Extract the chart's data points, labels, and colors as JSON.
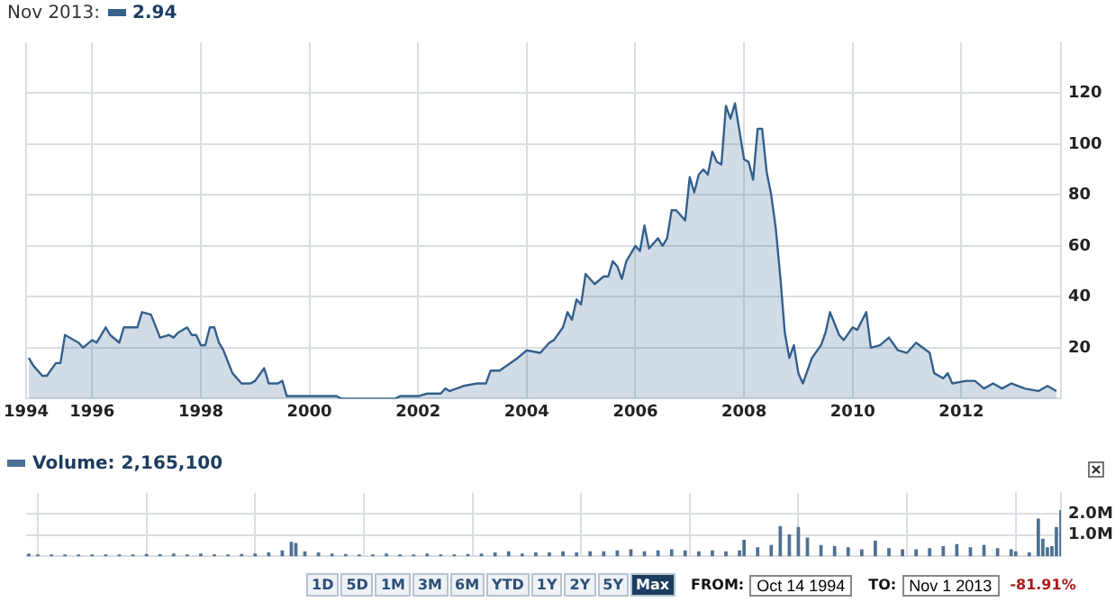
{
  "chart_data": [
    {
      "type": "area",
      "legend_title": "Nov 2013:",
      "legend": "top left",
      "grid": true,
      "xlim": [
        "1994-10-14",
        "2013-11-01"
      ],
      "ylim": [
        0,
        140
      ],
      "yticks": [
        20,
        40,
        60,
        80,
        100,
        120
      ],
      "xticks": [
        {
          "value": "1994-10-14",
          "label": "1994"
        },
        {
          "value": "1996-01-01",
          "label": "1996"
        },
        {
          "value": "1998-01-01",
          "label": "1998"
        },
        {
          "value": "2000-01-01",
          "label": "2000"
        },
        {
          "value": "2002-01-01",
          "label": "2002"
        },
        {
          "value": "2004-01-01",
          "label": "2004"
        },
        {
          "value": "2006-01-01",
          "label": "2006"
        },
        {
          "value": "2008-01-01",
          "label": "2008"
        },
        {
          "value": "2010-01-01",
          "label": "2010"
        },
        {
          "value": "2012-01-01",
          "label": "2012"
        }
      ],
      "series": [
        {
          "name": "2.94",
          "color": "#34608c",
          "x": [
            "1994-11",
            "1994-12",
            "1995-02",
            "1995-03",
            "1995-05",
            "1995-06",
            "1995-07",
            "1995-10",
            "1995-11",
            "1996-01",
            "1996-02",
            "1996-04",
            "1996-05",
            "1996-07",
            "1996-08",
            "1996-10",
            "1996-11",
            "1996-12",
            "1997-02",
            "1997-04",
            "1997-06",
            "1997-07",
            "1997-08",
            "1997-10",
            "1997-11",
            "1997-12",
            "1998-01",
            "1998-02",
            "1998-03",
            "1998-04",
            "1998-05",
            "1998-06",
            "1998-08",
            "1998-10",
            "1998-12",
            "1999-01",
            "1999-03",
            "1999-04",
            "1999-06",
            "1999-07",
            "1999-08",
            "1999-09",
            "1999-11",
            "2000-02",
            "2000-07",
            "2000-08",
            "2001-02",
            "2001-08",
            "2001-09",
            "2002-01",
            "2002-03",
            "2002-06",
            "2002-07",
            "2002-08",
            "2002-11",
            "2003-02",
            "2003-04",
            "2003-05",
            "2003-07",
            "2003-11",
            "2004-01",
            "2004-04",
            "2004-06",
            "2004-07",
            "2004-09",
            "2004-10",
            "2004-11",
            "2004-12",
            "2005-01",
            "2005-02",
            "2005-04",
            "2005-06",
            "2005-07",
            "2005-08",
            "2005-09",
            "2005-10",
            "2005-11",
            "2006-01",
            "2006-02",
            "2006-03",
            "2006-04",
            "2006-06",
            "2006-07",
            "2006-08",
            "2006-09",
            "2006-10",
            "2006-12",
            "2007-01",
            "2007-02",
            "2007-03",
            "2007-04",
            "2007-05",
            "2007-06",
            "2007-07",
            "2007-08",
            "2007-09",
            "2007-10",
            "2007-11",
            "2008-01",
            "2008-02",
            "2008-03",
            "2008-04",
            "2008-05",
            "2008-06",
            "2008-07",
            "2008-08",
            "2008-09",
            "2008-10",
            "2008-11",
            "2008-12",
            "2009-01",
            "2009-02",
            "2009-04",
            "2009-06",
            "2009-07",
            "2009-08",
            "2009-10",
            "2009-11",
            "2010-01",
            "2010-02",
            "2010-04",
            "2010-05",
            "2010-07",
            "2010-09",
            "2010-11",
            "2011-01",
            "2011-03",
            "2011-06",
            "2011-07",
            "2011-09",
            "2011-10",
            "2011-11",
            "2012-02",
            "2012-04",
            "2012-06",
            "2012-08",
            "2012-10",
            "2012-12",
            "2013-03",
            "2013-06",
            "2013-08",
            "2013-10"
          ],
          "values": [
            16,
            13,
            9,
            9,
            14,
            14,
            25,
            22,
            20,
            23,
            22,
            28,
            25,
            22,
            28,
            28,
            28,
            34,
            33,
            24,
            25,
            24,
            26,
            28,
            25,
            25,
            21,
            21,
            28,
            28,
            22,
            19,
            10,
            6,
            6,
            7,
            12,
            6,
            6,
            7,
            1,
            1,
            1,
            1,
            1,
            0,
            0,
            0,
            1,
            1,
            2,
            2,
            4,
            3,
            5,
            6,
            6,
            11,
            11,
            16,
            19,
            18,
            22,
            23,
            28,
            34,
            31,
            39,
            37,
            49,
            45,
            48,
            48,
            54,
            52,
            47,
            54,
            60,
            58,
            68,
            59,
            63,
            60,
            63,
            74,
            74,
            70,
            87,
            81,
            88,
            90,
            88,
            97,
            93,
            92,
            115,
            110,
            116,
            94,
            93,
            86,
            106,
            106,
            89,
            80,
            67,
            48,
            26,
            16,
            21,
            10,
            6,
            16,
            21,
            26,
            34,
            25,
            23,
            28,
            27,
            34,
            20,
            21,
            24,
            19,
            18,
            22,
            18,
            10,
            8,
            10,
            6,
            7,
            7,
            4,
            6,
            4,
            6,
            4,
            3,
            5,
            3
          ]
        }
      ]
    },
    {
      "type": "bar",
      "legend": "top left",
      "grid": true,
      "tick_labels": "y",
      "xlim": [
        "1994-10-14",
        "2013-11-01"
      ],
      "ylim": [
        0,
        3000000
      ],
      "yticks": [
        {
          "value": 1000000,
          "label": "1.0M"
        },
        {
          "value": 2000000,
          "label": "2.0M"
        }
      ],
      "xticks": [
        {
          "value": "1996-01-01",
          "label": null
        },
        {
          "value": "1998-01-01",
          "label": null
        },
        {
          "value": "2000-01-01",
          "label": null
        },
        {
          "value": "2002-01-01",
          "label": null
        },
        {
          "value": "2004-01-01",
          "label": null
        },
        {
          "value": "2006-01-01",
          "label": null
        },
        {
          "value": "2008-01-01",
          "label": null
        },
        {
          "value": "2010-01-01",
          "label": null
        },
        {
          "value": "2012-01-01",
          "label": null
        }
      ],
      "series": [
        {
          "name": "Volume: 2,165,100",
          "color": "#4d7193",
          "x": [
            "1994-11",
            "1995-01",
            "1995-04",
            "1995-07",
            "1995-10",
            "1996-01",
            "1996-04",
            "1996-07",
            "1996-10",
            "1997-01",
            "1997-04",
            "1997-07",
            "1997-10",
            "1998-01",
            "1998-04",
            "1998-07",
            "1998-10",
            "1999-01",
            "1999-04",
            "1999-07",
            "1999-09",
            "1999-10",
            "1999-12",
            "2000-03",
            "2000-06",
            "2000-09",
            "2000-12",
            "2001-03",
            "2001-06",
            "2001-09",
            "2001-12",
            "2002-03",
            "2002-06",
            "2002-09",
            "2002-12",
            "2003-03",
            "2003-06",
            "2003-09",
            "2003-12",
            "2004-03",
            "2004-06",
            "2004-09",
            "2004-12",
            "2005-03",
            "2005-06",
            "2005-09",
            "2005-12",
            "2006-03",
            "2006-06",
            "2006-09",
            "2006-12",
            "2007-03",
            "2007-06",
            "2007-09",
            "2007-12",
            "2008-01",
            "2008-04",
            "2008-07",
            "2008-09",
            "2008-11",
            "2009-01",
            "2009-03",
            "2009-06",
            "2009-09",
            "2009-12",
            "2010-03",
            "2010-06",
            "2010-09",
            "2010-12",
            "2011-03",
            "2011-06",
            "2011-09",
            "2011-12",
            "2012-03",
            "2012-06",
            "2012-09",
            "2012-12",
            "2013-01",
            "2013-04",
            "2013-06",
            "2013-07",
            "2013-08",
            "2013-09",
            "2013-10",
            "2013-11"
          ],
          "values": [
            100000,
            50000,
            50000,
            50000,
            50000,
            50000,
            50000,
            50000,
            60000,
            80000,
            70000,
            100000,
            60000,
            100000,
            70000,
            60000,
            80000,
            100000,
            150000,
            250000,
            650000,
            600000,
            200000,
            150000,
            100000,
            80000,
            50000,
            50000,
            100000,
            50000,
            50000,
            100000,
            50000,
            60000,
            80000,
            100000,
            150000,
            200000,
            100000,
            150000,
            150000,
            200000,
            150000,
            200000,
            200000,
            250000,
            300000,
            200000,
            250000,
            300000,
            250000,
            200000,
            250000,
            200000,
            250000,
            750000,
            400000,
            500000,
            1400000,
            1000000,
            1350000,
            850000,
            500000,
            450000,
            400000,
            300000,
            700000,
            350000,
            300000,
            300000,
            350000,
            450000,
            550000,
            400000,
            500000,
            350000,
            300000,
            200000,
            150000,
            1750000,
            800000,
            400000,
            450000,
            1350000,
            2150000
          ]
        }
      ]
    },
    {
      "type": "other",
      "annotations": [
        "1D",
        "5D",
        "1M",
        "3M",
        "6M",
        "YTD",
        "1Y",
        "2Y",
        "5Y",
        "Max",
        "FROM:",
        "Oct 14 1994",
        "TO:",
        "Nov 1 2013",
        "-81.91%"
      ]
    }
  ]
}
